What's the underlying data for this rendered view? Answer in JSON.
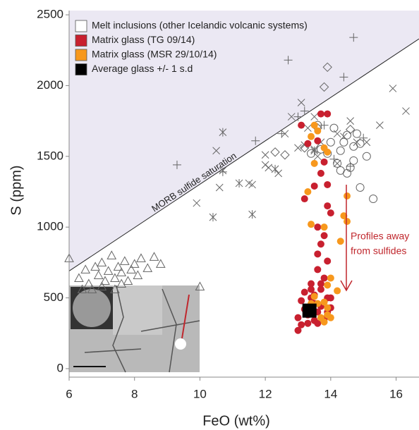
{
  "chart_data": {
    "type": "scatter",
    "x_label": "FeO (wt%)",
    "y_label": "S (ppm)",
    "xlim": [
      6,
      16.7
    ],
    "ylim": [
      -60,
      2530
    ],
    "xticks": [
      6,
      8,
      10,
      12,
      14,
      16
    ],
    "yticks": [
      0,
      500,
      1000,
      1500,
      2000,
      2500
    ],
    "legend": "upper left",
    "reference_line": {
      "label": "MORB sulfide saturation",
      "x": [
        6,
        16.7
      ],
      "values": [
        690,
        2330
      ],
      "shade": "#ebe8f3"
    },
    "annotation": {
      "lines": [
        "Profiles away",
        "from sulfides"
      ],
      "color": "#c0272d"
    },
    "series": [
      {
        "name": "Melt inclusions (other Icelandic volcanic systems)",
        "color": "#ffffff",
        "marker": "triangle",
        "x": [
          6.0,
          6.3,
          6.5,
          6.6,
          6.8,
          6.9,
          7.0,
          7.1,
          7.2,
          7.3,
          7.4,
          7.5,
          7.6,
          7.7,
          7.8,
          7.9,
          8.0,
          8.1,
          8.2,
          8.4,
          8.6,
          8.8,
          7.0,
          6.7,
          7.4,
          10.0,
          7.6,
          6.4
        ],
        "values": [
          780,
          640,
          700,
          600,
          720,
          660,
          750,
          620,
          690,
          800,
          640,
          720,
          680,
          760,
          620,
          700,
          740,
          660,
          780,
          710,
          790,
          740,
          580,
          560,
          560,
          580,
          600,
          560
        ]
      },
      {
        "marker": "x",
        "x": [
          9.9,
          10.5,
          10.6,
          10.7,
          11.5,
          11.6,
          12.0,
          12.0,
          12.1,
          12.4,
          12.6,
          12.8,
          13.1,
          13.2,
          13.3,
          13.5,
          13.6,
          13.7,
          14.2,
          14.4,
          14.6,
          14.8,
          15.1,
          15.5,
          15.9,
          16.3,
          14.2,
          13.5,
          13.0
        ],
        "values": [
          1170,
          1540,
          1280,
          1400,
          1310,
          1300,
          1510,
          1440,
          1420,
          1380,
          1660,
          1780,
          1880,
          1580,
          1700,
          1550,
          1500,
          1600,
          1660,
          1640,
          1750,
          1600,
          1600,
          1720,
          1980,
          1820,
          1450,
          1780,
          1560
        ]
      },
      {
        "marker": "plus",
        "x": [
          9.3,
          12.7,
          13.2,
          13.8,
          14.4,
          14.7,
          13.0,
          12.5,
          14.6,
          15.0,
          14.1,
          11.7,
          10.7
        ],
        "values": [
          1440,
          2180,
          1820,
          1720,
          2060,
          2340,
          1780,
          1660,
          1430,
          1630,
          1480,
          1610,
          1390
        ]
      },
      {
        "marker": "asterisk",
        "x": [
          10.7,
          10.4,
          11.6,
          11.2,
          12.3,
          13.5
        ],
        "values": [
          1670,
          1070,
          1090,
          1310,
          1410,
          1540
        ]
      },
      {
        "marker": "circle",
        "x": [
          13.4,
          13.6,
          13.7,
          14.0,
          14.1,
          14.2,
          14.3,
          14.4,
          14.5,
          14.6,
          14.7,
          14.8,
          14.9,
          15.1,
          15.3,
          14.7,
          14.3,
          14.9,
          13.9,
          14.5
        ],
        "values": [
          1520,
          1720,
          1550,
          1600,
          1700,
          1450,
          1540,
          1600,
          1380,
          1420,
          1570,
          1660,
          1280,
          1500,
          1200,
          1470,
          1400,
          1590,
          1520,
          1650
        ]
      },
      {
        "marker": "diamond",
        "x": [
          12.3,
          12.6,
          13.2,
          13.8,
          13.9,
          13.6,
          14.6
        ],
        "values": [
          1530,
          1510,
          1560,
          1990,
          2130,
          1700,
          1690
        ]
      },
      {
        "name": "Matrix glass (TG 09/14)",
        "color": "#c8202f",
        "marker": "dot",
        "x": [
          13.1,
          13.7,
          13.9,
          13.3,
          13.6,
          13.8,
          13.7,
          13.9,
          13.2,
          13.9,
          13.5,
          14.0,
          13.6,
          13.8,
          13.7,
          13.6,
          13.9,
          13.6,
          13.8,
          13.4,
          13.7,
          13.2,
          13.4,
          13.9,
          13.1,
          13.5,
          13.2,
          13.7,
          13.3,
          13.6,
          13.0,
          13.1,
          13.3,
          13.5,
          13.9,
          14.0,
          13.6,
          13.0,
          13.8,
          13.4,
          13.7,
          13.5,
          14.0
        ],
        "values": [
          1720,
          1800,
          1800,
          1590,
          1610,
          1460,
          1380,
          1300,
          1200,
          1150,
          1290,
          1100,
          1000,
          940,
          880,
          810,
          760,
          700,
          640,
          600,
          560,
          540,
          500,
          500,
          480,
          460,
          420,
          440,
          380,
          400,
          360,
          310,
          320,
          340,
          400,
          430,
          320,
          270,
          350,
          560,
          600,
          520,
          500
        ]
      },
      {
        "name": "Matrix glass (MSR 29/10/14)",
        "color": "#f7981d",
        "marker": "dot",
        "x": [
          13.5,
          13.4,
          13.8,
          13.9,
          13.5,
          13.3,
          13.4,
          14.5,
          14.4,
          14.3,
          14.5,
          13.6,
          13.8,
          14.0,
          13.9,
          14.2,
          13.5,
          13.8,
          13.9,
          14.0,
          13.8,
          13.9,
          13.6,
          13.4,
          13.7
        ],
        "values": [
          1720,
          1640,
          1560,
          1530,
          1450,
          1250,
          1020,
          1220,
          1080,
          900,
          1040,
          1680,
          1000,
          640,
          590,
          550,
          510,
          470,
          430,
          360,
          330,
          380,
          460,
          460,
          360
        ]
      },
      {
        "name": "Average glass +/- 1 s.d",
        "color": "#000000",
        "marker": "square",
        "x": [
          13.35
        ],
        "values": [
          410
        ]
      }
    ]
  }
}
